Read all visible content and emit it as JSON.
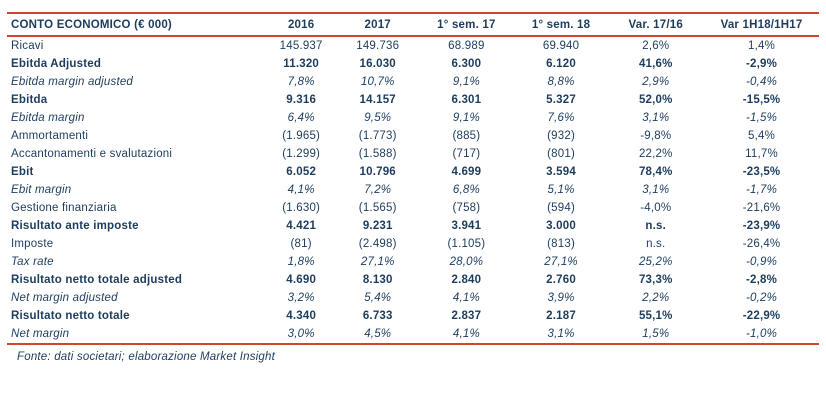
{
  "colors": {
    "accent": "#d0452b",
    "text": "#1c3c5e"
  },
  "table": {
    "title": "CONTO ECONOMICO (€ 000)",
    "columns": [
      "2016",
      "2017",
      "1° sem. 17",
      "1° sem. 18",
      "Var. 17/16",
      "Var 1H18/1H17"
    ],
    "rows": [
      {
        "label": "Ricavi",
        "style": "normal",
        "values": [
          "145.937",
          "149.736",
          "68.989",
          "69.940",
          "2,6%",
          "1,4%"
        ]
      },
      {
        "label": "Ebitda Adjusted",
        "style": "bold",
        "values": [
          "11.320",
          "16.030",
          "6.300",
          "6.120",
          "41,6%",
          "-2,9%"
        ]
      },
      {
        "label": "Ebitda margin adjusted",
        "style": "italic",
        "values": [
          "7,8%",
          "10,7%",
          "9,1%",
          "8,8%",
          "2,9%",
          "-0,4%"
        ]
      },
      {
        "label": "Ebitda",
        "style": "bold",
        "values": [
          "9.316",
          "14.157",
          "6.301",
          "5.327",
          "52,0%",
          "-15,5%"
        ]
      },
      {
        "label": "Ebitda margin",
        "style": "italic",
        "values": [
          "6,4%",
          "9,5%",
          "9,1%",
          "7,6%",
          "3,1%",
          "-1,5%"
        ]
      },
      {
        "label": "Ammortamenti",
        "style": "normal",
        "values": [
          "(1.965)",
          "(1.773)",
          "(885)",
          "(932)",
          "-9,8%",
          "5,4%"
        ]
      },
      {
        "label": "Accantonamenti e svalutazioni",
        "style": "normal",
        "values": [
          "(1.299)",
          "(1.588)",
          "(717)",
          "(801)",
          "22,2%",
          "11,7%"
        ]
      },
      {
        "label": "Ebit",
        "style": "bold",
        "values": [
          "6.052",
          "10.796",
          "4.699",
          "3.594",
          "78,4%",
          "-23,5%"
        ]
      },
      {
        "label": "Ebit margin",
        "style": "italic",
        "values": [
          "4,1%",
          "7,2%",
          "6,8%",
          "5,1%",
          "3,1%",
          "-1,7%"
        ]
      },
      {
        "label": "Gestione finanziaria",
        "style": "normal",
        "values": [
          "(1.630)",
          "(1.565)",
          "(758)",
          "(594)",
          "-4,0%",
          "-21,6%"
        ]
      },
      {
        "label": "Risultato ante imposte",
        "style": "bold",
        "values": [
          "4.421",
          "9.231",
          "3.941",
          "3.000",
          "n.s.",
          "-23,9%"
        ]
      },
      {
        "label": "Imposte",
        "style": "normal",
        "values": [
          "(81)",
          "(2.498)",
          "(1.105)",
          "(813)",
          "n.s.",
          "-26,4%"
        ]
      },
      {
        "label": "Tax rate",
        "style": "italic",
        "values": [
          "1,8%",
          "27,1%",
          "28,0%",
          "27,1%",
          "25,2%",
          "-0,9%"
        ]
      },
      {
        "label": "Risultato netto totale adjusted",
        "style": "bold",
        "values": [
          "4.690",
          "8.130",
          "2.840",
          "2.760",
          "73,3%",
          "-2,8%"
        ]
      },
      {
        "label": "Net margin adjusted",
        "style": "italic",
        "values": [
          "3,2%",
          "5,4%",
          "4,1%",
          "3,9%",
          "2,2%",
          "-0,2%"
        ]
      },
      {
        "label": "Risultato netto totale",
        "style": "bold",
        "values": [
          "4.340",
          "6.733",
          "2.837",
          "2.187",
          "55,1%",
          "-22,9%"
        ]
      },
      {
        "label": "Net margin",
        "style": "italic",
        "values": [
          "3,0%",
          "4,5%",
          "4,1%",
          "3,1%",
          "1,5%",
          "-1,0%"
        ]
      }
    ]
  },
  "footer": {
    "source": "Fonte: dati societari; elaborazione Market Insight"
  }
}
